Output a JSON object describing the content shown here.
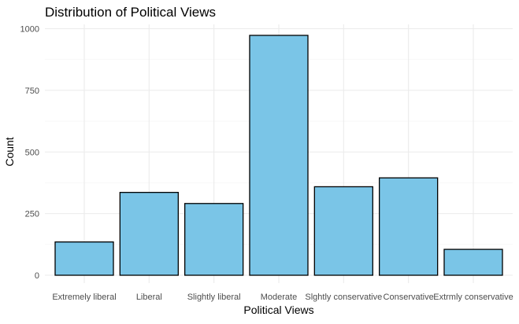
{
  "chart_data": {
    "type": "bar",
    "title": "Distribution of Political Views",
    "xlabel": "Political Views",
    "ylabel": "Count",
    "categories": [
      "Extremely liberal",
      "Liberal",
      "Slightly liberal",
      "Moderate",
      "Slghtly conservative",
      "Conservative",
      "Extrmly conservative"
    ],
    "values": [
      135,
      336,
      291,
      973,
      359,
      395,
      105
    ],
    "ylim": [
      0,
      1030
    ],
    "yticks": [
      0,
      250,
      500,
      750,
      1000
    ],
    "ytick_labels": [
      "0",
      "250",
      "500",
      "750",
      "1000"
    ],
    "grid": true,
    "legend": "none",
    "colors": {
      "bar_fill": "#7AC5E7",
      "bar_stroke": "#000000",
      "grid_major": "#EBEBEB",
      "grid_minor": "#F4F4F4",
      "background": "#FFFFFF"
    }
  }
}
